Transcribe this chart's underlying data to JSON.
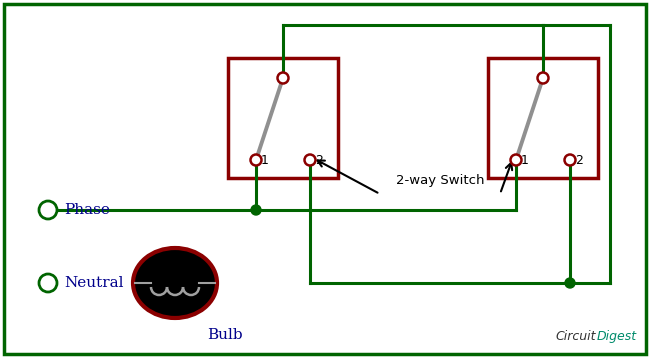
{
  "bg_color": "#ffffff",
  "border_color": "#006400",
  "wire_color": "#006400",
  "switch_box_color": "#8B0000",
  "switch_line_color": "#909090",
  "terminal_color": "#8B0000",
  "bulb_fill": "#000000",
  "bulb_border": "#8B0000",
  "phase_label": "Phase",
  "neutral_label": "Neutral",
  "bulb_label": "Bulb",
  "switch_label": "2-way Switch",
  "circuit_digest_label": "CircuitDigest",
  "label1": "1",
  "label2": "2",
  "text_color_dark": "#00008B",
  "text_color_green": "#006400",
  "cd_color": "#008B8B"
}
